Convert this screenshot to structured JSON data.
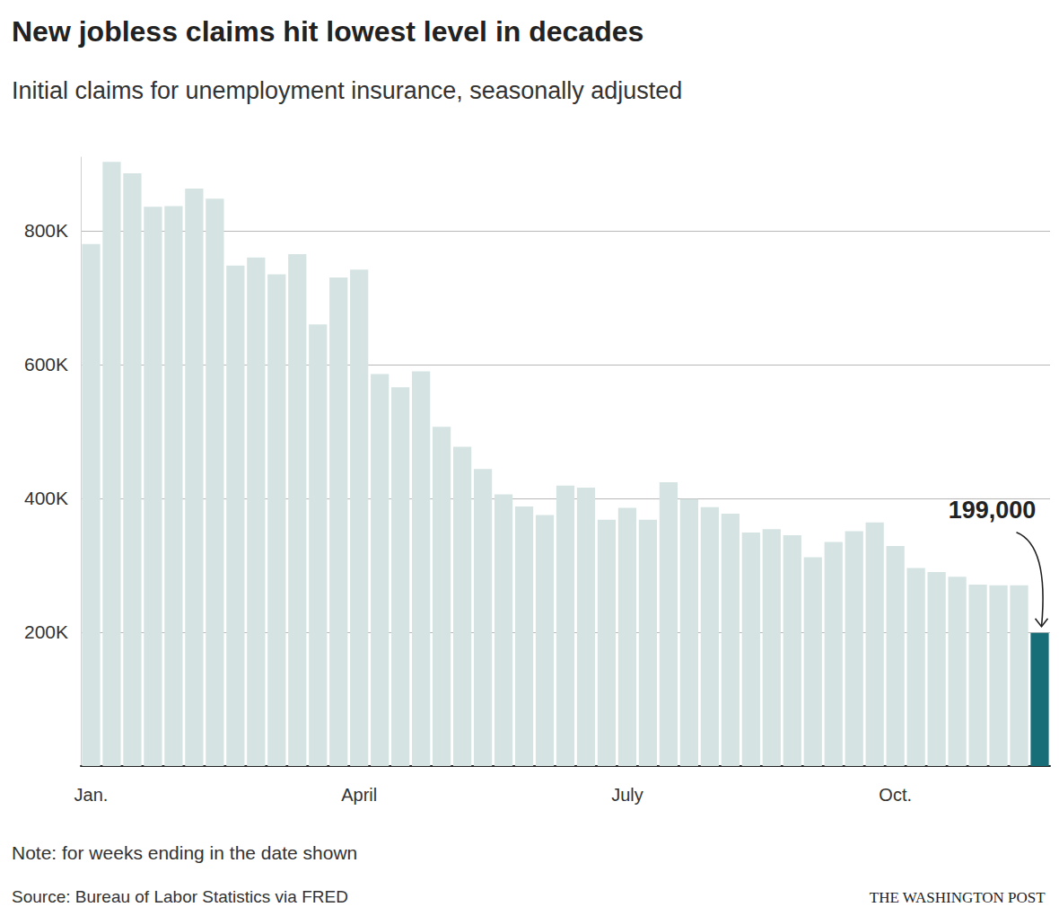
{
  "chart_data": {
    "type": "bar",
    "title": "New jobless claims hit lowest level in decades",
    "subtitle": "Initial claims for unemployment insurance, seasonally adjusted",
    "categories": [
      "Jan.",
      null,
      null,
      null,
      null,
      null,
      null,
      null,
      null,
      null,
      null,
      null,
      null,
      "April",
      null,
      null,
      null,
      null,
      null,
      null,
      null,
      null,
      null,
      null,
      null,
      null,
      "July",
      null,
      null,
      null,
      null,
      null,
      null,
      null,
      null,
      null,
      null,
      null,
      null,
      "Oct.",
      null,
      null,
      null,
      null,
      null,
      null,
      null
    ],
    "values": [
      780000,
      903000,
      886000,
      836000,
      837000,
      863000,
      848000,
      748000,
      760000,
      735000,
      765000,
      660000,
      730000,
      742000,
      586000,
      566000,
      590000,
      507000,
      477000,
      444000,
      406000,
      388000,
      375000,
      419000,
      416000,
      368000,
      386000,
      368000,
      424000,
      399000,
      387000,
      377000,
      349000,
      354000,
      345000,
      312000,
      335000,
      351000,
      364000,
      329000,
      296000,
      290000,
      283000,
      271000,
      270000,
      270000,
      199000
    ],
    "colors": [
      "#d5e3e3",
      "#d5e3e3",
      "#d5e3e3",
      "#d5e3e3",
      "#d5e3e3",
      "#d5e3e3",
      "#d5e3e3",
      "#d5e3e3",
      "#d5e3e3",
      "#d5e3e3",
      "#d5e3e3",
      "#d5e3e3",
      "#d5e3e3",
      "#d5e3e3",
      "#d5e3e3",
      "#d5e3e3",
      "#d5e3e3",
      "#d5e3e3",
      "#d5e3e3",
      "#d5e3e3",
      "#d5e3e3",
      "#d5e3e3",
      "#d5e3e3",
      "#d5e3e3",
      "#d5e3e3",
      "#d5e3e3",
      "#d5e3e3",
      "#d5e3e3",
      "#d5e3e3",
      "#d5e3e3",
      "#d5e3e3",
      "#d5e3e3",
      "#d5e3e3",
      "#d5e3e3",
      "#d5e3e3",
      "#d5e3e3",
      "#d5e3e3",
      "#d5e3e3",
      "#d5e3e3",
      "#d5e3e3",
      "#d5e3e3",
      "#d5e3e3",
      "#d5e3e3",
      "#d5e3e3",
      "#d5e3e3",
      "#d5e3e3",
      "#176e79"
    ],
    "annotation": "199,000",
    "ylim": [
      0,
      910000
    ],
    "yticks": [
      {
        "value": 200000,
        "label": "200K"
      },
      {
        "value": 400000,
        "label": "400K"
      },
      {
        "value": 600000,
        "label": "600K"
      },
      {
        "value": 800000,
        "label": "800K"
      }
    ],
    "grid": true,
    "note": "Note: for weeks ending in the date shown",
    "source": "Source: Bureau of Labor Statistics via FRED",
    "credit": "THE WASHINGTON POST"
  }
}
